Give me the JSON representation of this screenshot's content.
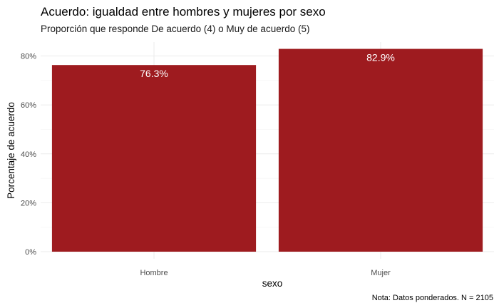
{
  "chart_data": {
    "type": "bar",
    "title": "Acuerdo: igualdad entre hombres y mujeres por sexo",
    "subtitle": "Proporción que responde De acuerdo (4) o Muy de acuerdo (5)",
    "xlabel": "sexo",
    "ylabel": "Porcentaje de acuerdo",
    "caption": "Nota: Datos ponderados. N = 2105",
    "categories": [
      "Hombre",
      "Mujer"
    ],
    "values": [
      76.3,
      82.9
    ],
    "data_labels": [
      "76.3%",
      "82.9%"
    ],
    "ylim": [
      0,
      83
    ],
    "y_ticks": [
      0,
      20,
      40,
      60,
      80
    ],
    "y_tick_labels": [
      "0%",
      "20%",
      "40%",
      "60%",
      "80%"
    ],
    "grid": true,
    "legend": "none",
    "bar_color": "#9e1b1f"
  }
}
